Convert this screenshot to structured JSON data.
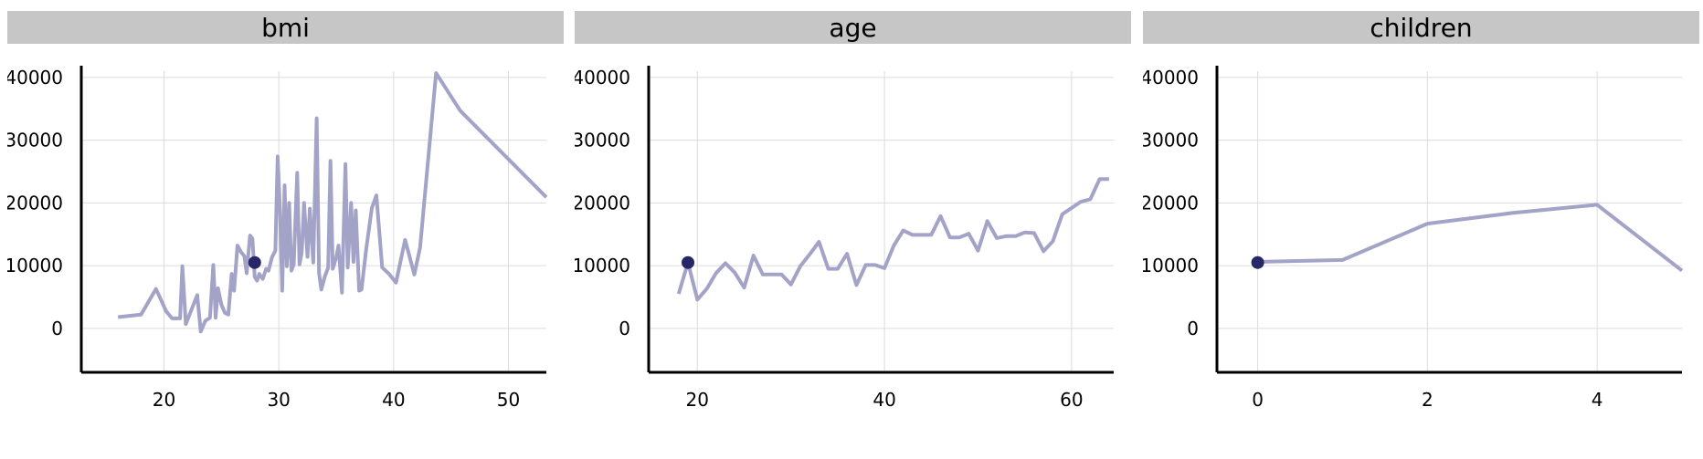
{
  "colors": {
    "line": "#a3a3c8",
    "point": "#262668",
    "strip": "#c6c6c6",
    "grid": "#dcdcdc",
    "axis": "#000000"
  },
  "chart_data": [
    {
      "type": "line",
      "title": "bmi",
      "ylim": [
        -7000,
        41000
      ],
      "xlim": [
        12.8,
        53.3
      ],
      "yticks": [
        "0",
        "10000",
        "20000",
        "30000",
        "40000"
      ],
      "xticks": [
        "20",
        "30",
        "40",
        "50"
      ],
      "grid": true,
      "series": [
        {
          "x": [
            16.0,
            18.0,
            19.3,
            20.2,
            20.7,
            21.4,
            21.6,
            21.9,
            22.9,
            23.2,
            23.6,
            24.0,
            24.3,
            24.5,
            24.7,
            25.0,
            25.3,
            25.6,
            25.9,
            26.1,
            26.4,
            26.7,
            27.0,
            27.2,
            27.5,
            27.7,
            27.9,
            28.1,
            28.3,
            28.6,
            28.9,
            29.1,
            29.4,
            29.7,
            29.9,
            30.1,
            30.3,
            30.5,
            30.7,
            30.9,
            31.1,
            31.3,
            31.6,
            31.8,
            32.0,
            32.2,
            32.5,
            32.7,
            33.0,
            33.3,
            33.5,
            33.7,
            34.0,
            34.3,
            34.5,
            34.7,
            35.0,
            35.2,
            35.5,
            35.8,
            36.0,
            36.3,
            36.5,
            36.7,
            37.0,
            37.2,
            37.6,
            38.1,
            38.5,
            39.0,
            39.6,
            40.2,
            41.0,
            41.8,
            42.3,
            43.7,
            45.8,
            53.3
          ],
          "y": [
            1800,
            2200,
            6300,
            2700,
            1600,
            1600,
            9900,
            700,
            5300,
            -500,
            1200,
            1700,
            10100,
            1700,
            6400,
            3800,
            2500,
            2200,
            8700,
            6000,
            13200,
            12200,
            11500,
            8800,
            14800,
            14300,
            8200,
            7600,
            8700,
            7900,
            9500,
            9200,
            11300,
            12400,
            27400,
            19000,
            6000,
            22800,
            9900,
            20000,
            9200,
            10200,
            24800,
            10200,
            12200,
            20000,
            11400,
            19100,
            10500,
            33500,
            8800,
            6200,
            8200,
            9700,
            26700,
            9500,
            11300,
            13200,
            5700,
            26200,
            9700,
            20000,
            10600,
            18800,
            6000,
            6200,
            12500,
            19200,
            21200,
            9700,
            8700,
            7300,
            14100,
            8600,
            12900,
            40700,
            34700,
            20900
          ]
        }
      ],
      "point": {
        "x": 27.9,
        "y": 10500
      }
    },
    {
      "type": "line",
      "title": "age",
      "ylim": [
        -7000,
        41000
      ],
      "xlim": [
        14.8,
        64.5
      ],
      "yticks": [
        "0",
        "10000",
        "20000",
        "30000",
        "40000"
      ],
      "xticks": [
        "20",
        "40",
        "60"
      ],
      "grid": true,
      "series": [
        {
          "x": [
            18,
            19,
            20,
            21,
            22,
            23,
            24,
            25,
            26,
            27,
            28,
            29,
            30,
            31,
            32,
            33,
            34,
            35,
            36,
            37,
            38,
            39,
            40,
            41,
            42,
            43,
            44,
            45,
            46,
            47,
            48,
            49,
            50,
            51,
            52,
            53,
            54,
            55,
            56,
            57,
            58,
            59,
            60,
            61,
            62,
            63,
            64
          ],
          "y": [
            5500,
            10500,
            4600,
            6300,
            8800,
            10400,
            8900,
            6500,
            11600,
            8600,
            8600,
            8600,
            7000,
            9900,
            11800,
            13800,
            9500,
            9500,
            11900,
            6900,
            10100,
            10100,
            9600,
            13200,
            15600,
            14900,
            14900,
            14900,
            17900,
            14500,
            14500,
            15100,
            12400,
            17100,
            14400,
            14700,
            14700,
            15300,
            15200,
            12300,
            13900,
            18200,
            19200,
            20200,
            20600,
            23800,
            23800
          ]
        }
      ],
      "point": {
        "x": 19,
        "y": 10500
      }
    },
    {
      "type": "line",
      "title": "children",
      "ylim": [
        -7000,
        41000
      ],
      "xlim": [
        -0.48,
        5.0
      ],
      "yticks": [
        "0",
        "10000",
        "20000",
        "30000",
        "40000"
      ],
      "xticks": [
        "0",
        "2",
        "4"
      ],
      "grid": true,
      "series": [
        {
          "x": [
            0,
            1,
            2,
            3,
            4,
            5
          ],
          "y": [
            10600,
            10900,
            16700,
            18400,
            19700,
            9200
          ]
        }
      ],
      "point": {
        "x": 0,
        "y": 10500
      }
    }
  ]
}
